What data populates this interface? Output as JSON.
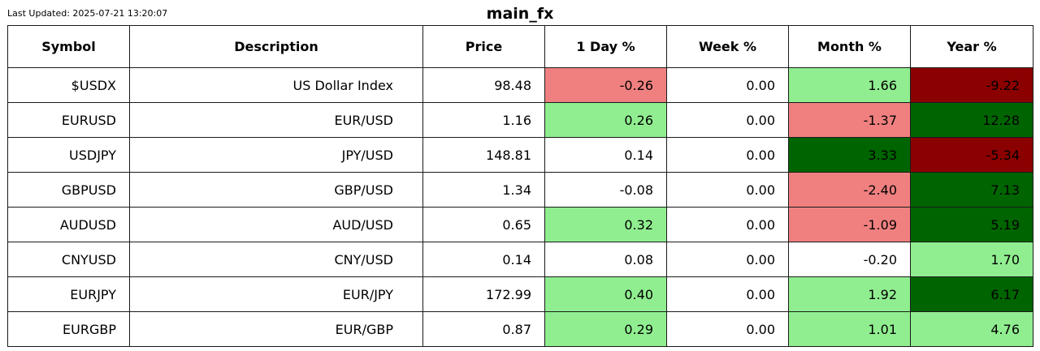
{
  "last_updated": "Last Updated: 2025-07-21 13:20:07",
  "chart_data": {
    "type": "table",
    "title": "main_fx",
    "columns": [
      "Symbol",
      "Description",
      "Price",
      "1 Day %",
      "Week %",
      "Month %",
      "Year %"
    ],
    "rows": [
      {
        "symbol": "$USDX",
        "description": "US Dollar Index",
        "price": "98.48",
        "day": "-0.26",
        "week": "0.00",
        "month": "1.66",
        "year": "-9.22"
      },
      {
        "symbol": "EURUSD",
        "description": "EUR/USD",
        "price": "1.16",
        "day": "0.26",
        "week": "0.00",
        "month": "-1.37",
        "year": "12.28"
      },
      {
        "symbol": "USDJPY",
        "description": "JPY/USD",
        "price": "148.81",
        "day": "0.14",
        "week": "0.00",
        "month": "3.33",
        "year": "-5.34"
      },
      {
        "symbol": "GBPUSD",
        "description": "GBP/USD",
        "price": "1.34",
        "day": "-0.08",
        "week": "0.00",
        "month": "-2.40",
        "year": "7.13"
      },
      {
        "symbol": "AUDUSD",
        "description": "AUD/USD",
        "price": "0.65",
        "day": "0.32",
        "week": "0.00",
        "month": "-1.09",
        "year": "5.19"
      },
      {
        "symbol": "CNYUSD",
        "description": "CNY/USD",
        "price": "0.14",
        "day": "0.08",
        "week": "0.00",
        "month": "-0.20",
        "year": "1.70"
      },
      {
        "symbol": "EURJPY",
        "description": "EUR/JPY",
        "price": "172.99",
        "day": "0.40",
        "week": "0.00",
        "month": "1.92",
        "year": "6.17"
      },
      {
        "symbol": "EURGBP",
        "description": "EUR/GBP",
        "price": "0.87",
        "day": "0.29",
        "week": "0.00",
        "month": "1.01",
        "year": "4.76"
      }
    ],
    "cell_colors": {
      "strong_negative": "#8b0000",
      "negative": "#f08080",
      "positive": "#90ee90",
      "strong_positive": "#006400",
      "neutral": "#ffffff"
    },
    "color_rules": {
      "day": {
        "positive_above": 0.2,
        "negative_below": -0.2
      },
      "week": {
        "positive_above": 0.5,
        "negative_below": -0.5
      },
      "month": {
        "positive_above": 1.0,
        "negative_below": -1.0,
        "strong_above": 3.0,
        "strong_below": -3.0
      },
      "year": {
        "positive_above": 1.0,
        "negative_below": -1.0,
        "strong_above": 5.0,
        "strong_below": -5.0
      }
    }
  }
}
